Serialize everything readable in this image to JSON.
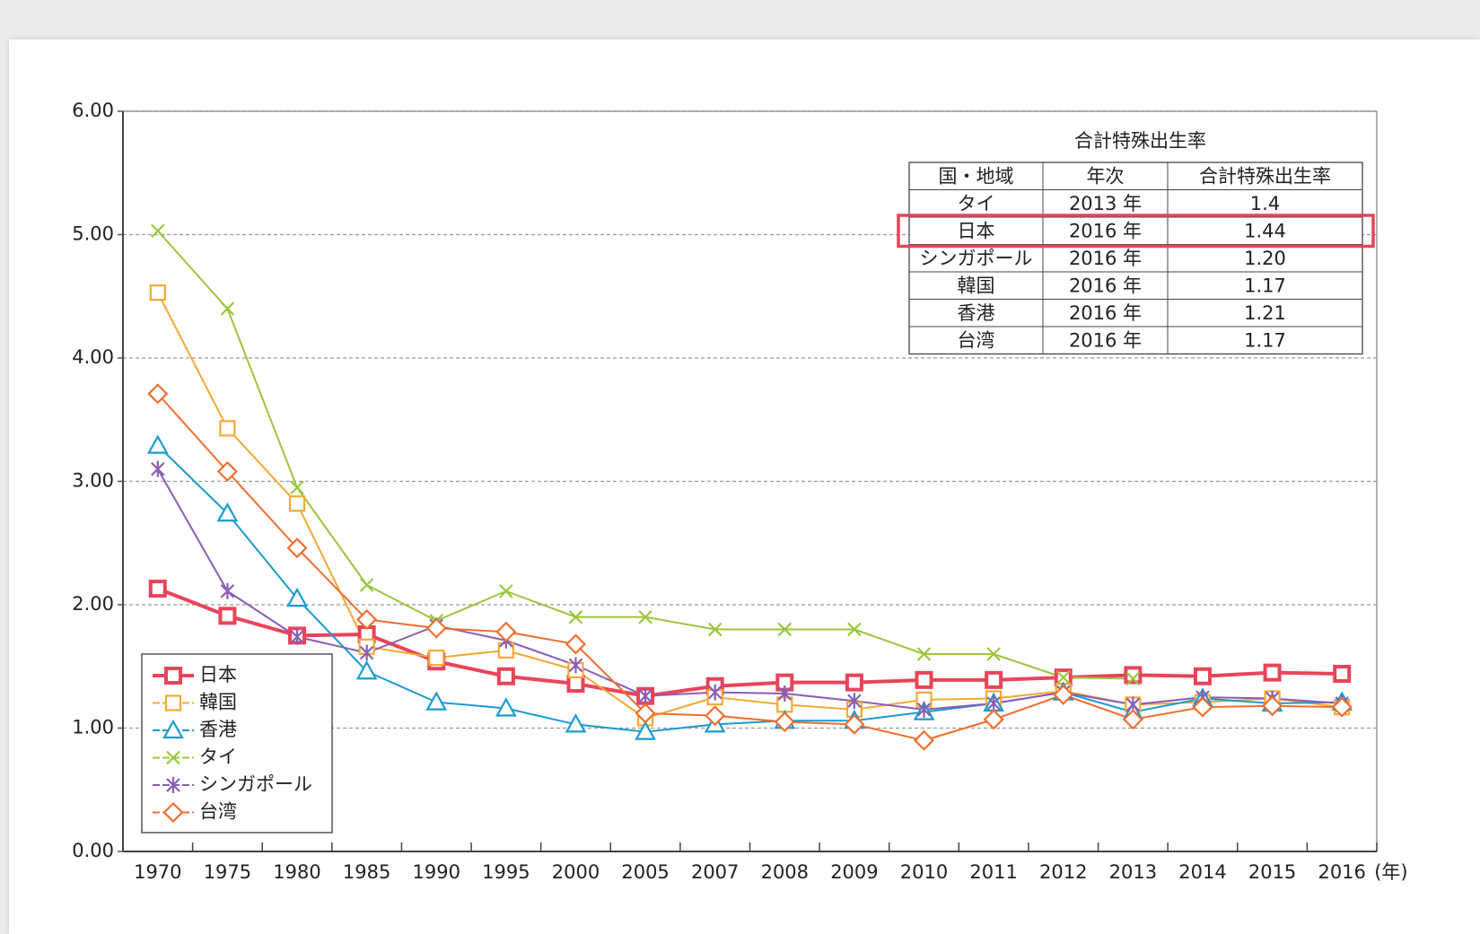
{
  "chart_data": {
    "type": "line",
    "categories": [
      "1970",
      "1975",
      "1980",
      "1985",
      "1990",
      "1995",
      "2000",
      "2005",
      "2007",
      "2008",
      "2009",
      "2010",
      "2011",
      "2012",
      "2013",
      "2014",
      "2015",
      "2016"
    ],
    "xlabel": "(年)",
    "ylim": [
      0,
      6
    ],
    "yticks": [
      {
        "value": 0,
        "label": "0.00"
      },
      {
        "value": 1,
        "label": "1.00"
      },
      {
        "value": 2,
        "label": "2.00"
      },
      {
        "value": 3,
        "label": "3.00"
      },
      {
        "value": 4,
        "label": "4.00"
      },
      {
        "value": 5,
        "label": "5.00"
      },
      {
        "value": 6,
        "label": "6.00"
      }
    ],
    "grid": true,
    "legend": "lower left",
    "series": [
      {
        "name": "日本",
        "color": "#e8445a",
        "marker": "square",
        "values": [
          2.13,
          1.91,
          1.75,
          1.76,
          1.54,
          1.42,
          1.36,
          1.26,
          1.34,
          1.37,
          1.37,
          1.39,
          1.39,
          1.41,
          1.43,
          1.42,
          1.45,
          1.44
        ]
      },
      {
        "name": "韓国",
        "color": "#f5a935",
        "marker": "square",
        "values": [
          4.53,
          3.43,
          2.82,
          1.66,
          1.57,
          1.63,
          1.47,
          1.08,
          1.25,
          1.19,
          1.15,
          1.23,
          1.24,
          1.3,
          1.19,
          1.21,
          1.24,
          1.17
        ]
      },
      {
        "name": "香港",
        "color": "#1a9bd0",
        "marker": "triangle",
        "values": [
          3.29,
          2.74,
          2.05,
          1.46,
          1.21,
          1.16,
          1.03,
          0.97,
          1.03,
          1.06,
          1.06,
          1.13,
          1.2,
          1.29,
          1.13,
          1.24,
          1.2,
          1.21
        ]
      },
      {
        "name": "タイ",
        "color": "#9bc63b",
        "marker": "x",
        "values": [
          5.03,
          4.4,
          2.95,
          2.16,
          1.87,
          2.11,
          1.9,
          1.9,
          1.8,
          1.8,
          1.8,
          1.6,
          1.6,
          1.41,
          1.4,
          null,
          null,
          null
        ]
      },
      {
        "name": "シンガポール",
        "color": "#8a5db5",
        "marker": "asterisk",
        "values": [
          3.1,
          2.11,
          1.74,
          1.61,
          1.83,
          1.71,
          1.51,
          1.26,
          1.29,
          1.28,
          1.22,
          1.15,
          1.2,
          1.29,
          1.19,
          1.25,
          1.24,
          1.2
        ]
      },
      {
        "name": "台湾",
        "color": "#f06e2e",
        "marker": "diamond",
        "values": [
          3.71,
          3.08,
          2.46,
          1.88,
          1.81,
          1.78,
          1.68,
          1.12,
          1.1,
          1.05,
          1.03,
          0.9,
          1.07,
          1.27,
          1.07,
          1.17,
          1.18,
          1.17
        ]
      }
    ]
  },
  "table": {
    "title": "合計特殊出生率",
    "header": [
      "国・地域",
      "年次",
      "合計特殊出生率"
    ],
    "rows": [
      [
        "タイ",
        "2013 年",
        "1.4"
      ],
      [
        "日本",
        "2016 年",
        "1.44"
      ],
      [
        "シンガポール",
        "2016 年",
        "1.20"
      ],
      [
        "韓国",
        "2016 年",
        "1.17"
      ],
      [
        "香港",
        "2016 年",
        "1.21"
      ],
      [
        "台湾",
        "2016 年",
        "1.17"
      ]
    ],
    "highlight_row": 1
  }
}
